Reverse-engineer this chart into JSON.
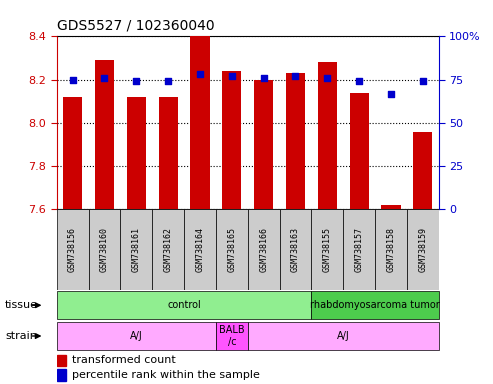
{
  "title": "GDS5527 / 102360040",
  "samples": [
    "GSM738156",
    "GSM738160",
    "GSM738161",
    "GSM738162",
    "GSM738164",
    "GSM738165",
    "GSM738166",
    "GSM738163",
    "GSM738155",
    "GSM738157",
    "GSM738158",
    "GSM738159"
  ],
  "transformed_count": [
    8.12,
    8.29,
    8.12,
    8.12,
    8.4,
    8.24,
    8.2,
    8.23,
    8.28,
    8.14,
    7.62,
    7.96
  ],
  "percentile_rank": [
    75,
    76,
    74,
    74,
    78,
    77,
    76,
    77,
    76,
    74,
    67,
    74
  ],
  "ylim_left": [
    7.6,
    8.4
  ],
  "ylim_right": [
    0,
    100
  ],
  "yticks_left": [
    7.6,
    7.8,
    8.0,
    8.2,
    8.4
  ],
  "yticks_right": [
    0,
    25,
    50,
    75,
    100
  ],
  "bar_color": "#cc0000",
  "dot_color": "#0000cc",
  "bar_bottom": 7.6,
  "tissue_groups": [
    {
      "label": "control",
      "start": 0,
      "end": 8,
      "color": "#90ee90"
    },
    {
      "label": "rhabdomyosarcoma tumor",
      "start": 8,
      "end": 12,
      "color": "#4dcc4d"
    }
  ],
  "strain_groups": [
    {
      "label": "A/J",
      "start": 0,
      "end": 5,
      "color": "#ffaaff"
    },
    {
      "label": "BALB\n/c",
      "start": 5,
      "end": 6,
      "color": "#ff55ff"
    },
    {
      "label": "A/J",
      "start": 6,
      "end": 12,
      "color": "#ffaaff"
    }
  ],
  "legend_bar_label": "transformed count",
  "legend_dot_label": "percentile rank within the sample",
  "left_axis_color": "#cc0000",
  "right_axis_color": "#0000cc",
  "fig_width": 4.93,
  "fig_height": 3.84,
  "dpi": 100
}
